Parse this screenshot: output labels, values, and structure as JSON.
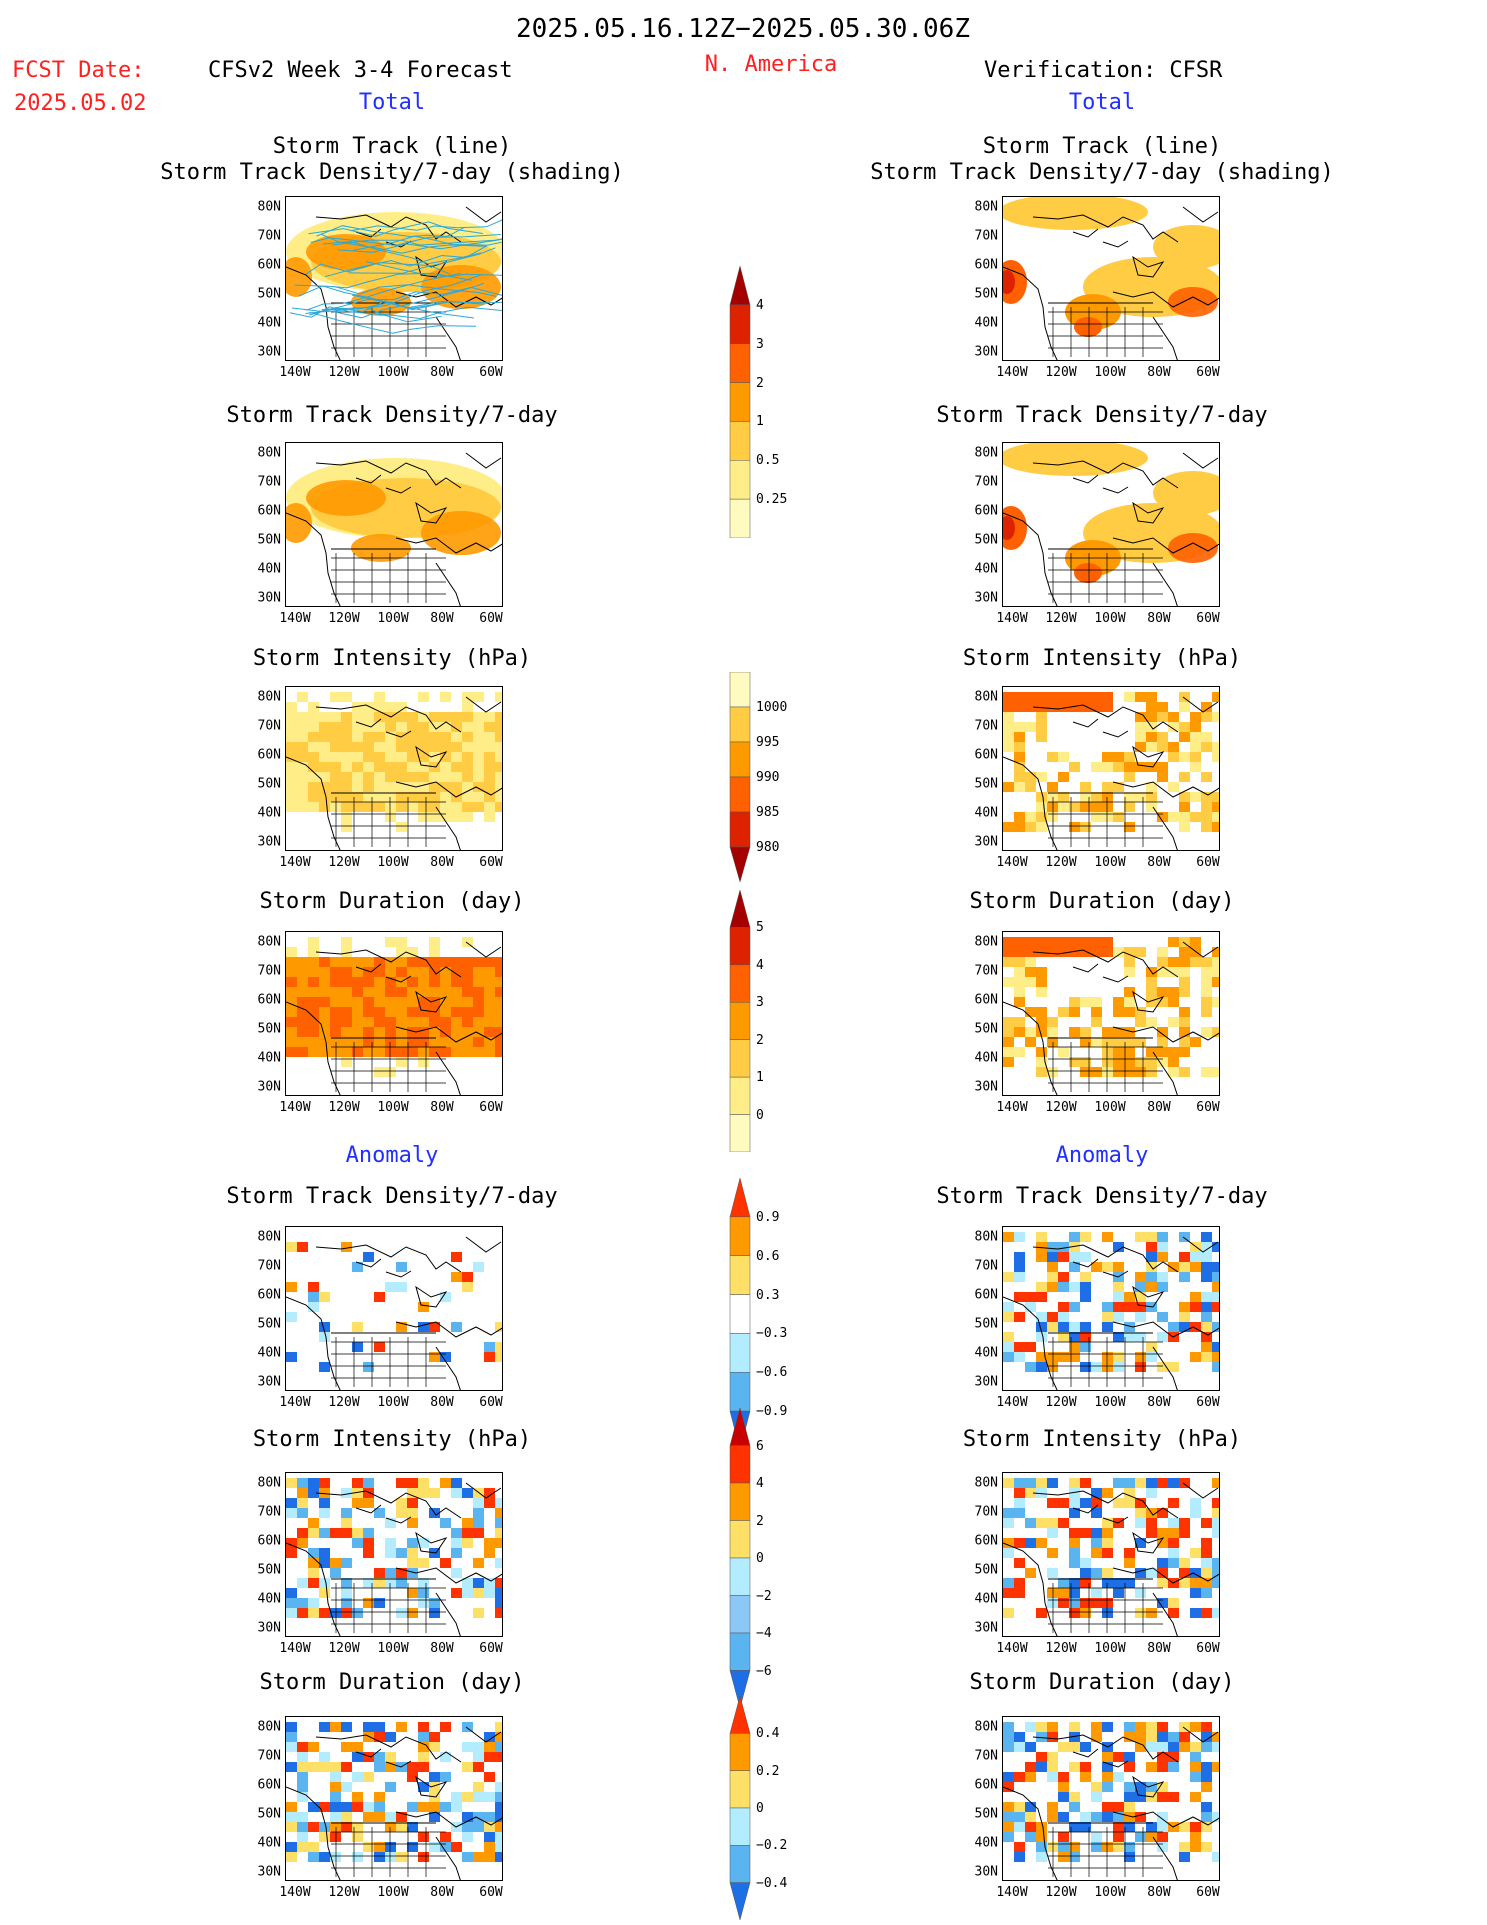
{
  "header": {
    "period": "2025.05.16.12Z−2025.05.30.06Z",
    "fcst_date_label": "FCST Date:",
    "fcst_date_value": "2025.05.02",
    "model_title": "CFSv2 Week 3-4 Forecast",
    "region": "N. America",
    "verification": "Verification: CFSR"
  },
  "sections": {
    "total": "Total",
    "anomaly": "Anomaly"
  },
  "panels": {
    "track_title_line1": "Storm Track (line)",
    "track_title_line2": "Storm Track Density/7-day (shading)",
    "density": "Storm Track Density/7-day",
    "intensity": "Storm Intensity (hPa)",
    "duration": "Storm Duration (day)"
  },
  "axes": {
    "lat_labels": [
      "80N",
      "70N",
      "60N",
      "50N",
      "40N",
      "30N"
    ],
    "lon_labels": [
      "140W",
      "120W",
      "100W",
      "80W",
      "60W"
    ]
  },
  "colorbars": {
    "density_total": {
      "labels": [
        "4",
        "3",
        "2",
        "1",
        "0.5",
        "0.25"
      ],
      "colors": [
        "#a50000",
        "#dd2200",
        "#ff6000",
        "#ff9900",
        "#ffcc44",
        "#ffee88",
        "#fffbc0"
      ]
    },
    "intensity_total": {
      "labels": [
        "1000",
        "995",
        "990",
        "985",
        "980"
      ],
      "colors": [
        "#fffbc0",
        "#ffcc44",
        "#ff9900",
        "#ff6000",
        "#dd2200",
        "#a50000"
      ]
    },
    "duration_total": {
      "labels": [
        "5",
        "4",
        "3",
        "2",
        "1",
        "0"
      ],
      "colors": [
        "#a50000",
        "#dd2200",
        "#ff6000",
        "#ff9900",
        "#ffcc44",
        "#ffee88",
        "#fffbc0"
      ]
    },
    "density_anom": {
      "labels": [
        "0.9",
        "0.6",
        "0.3",
        "−0.3",
        "−0.6",
        "−0.9"
      ],
      "colors": [
        "#ff3300",
        "#ff9900",
        "#ffe066",
        "#ffffff",
        "#b3ecff",
        "#5ab4f0",
        "#1e6ee6"
      ]
    },
    "intensity_anom": {
      "labels": [
        "6",
        "4",
        "2",
        "0",
        "−2",
        "−4",
        "−6"
      ],
      "colors": [
        "#c80000",
        "#ff3300",
        "#ff9900",
        "#ffe066",
        "#b3ecff",
        "#8cc8f5",
        "#5ab4f0",
        "#1e6ee6"
      ]
    },
    "duration_anom": {
      "labels": [
        "0.4",
        "0.2",
        "0",
        "−0.2",
        "−0.4"
      ],
      "colors": [
        "#ff3300",
        "#ff9900",
        "#ffe066",
        "#b3ecff",
        "#5ab4f0",
        "#1e6ee6"
      ]
    }
  },
  "colors": {
    "accent_red": "#ff2020",
    "accent_blue": "#2030ff",
    "track_line": "#2aa8d8"
  }
}
